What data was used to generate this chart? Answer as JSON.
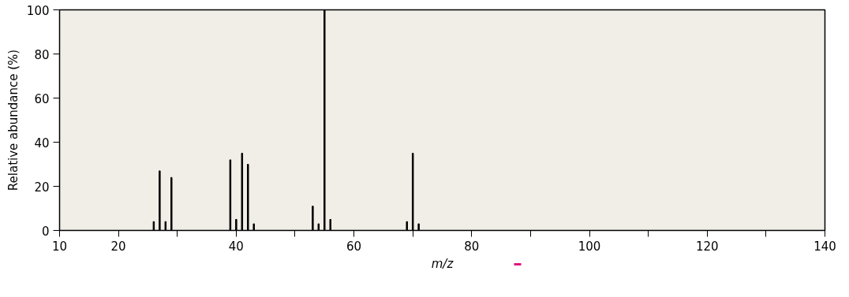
{
  "chart_data": {
    "type": "bar",
    "xlabel": "m/z",
    "ylabel": "Relative abundance (%)",
    "x": [
      26,
      27,
      28,
      29,
      39,
      40,
      41,
      42,
      43,
      53,
      54,
      55,
      56,
      69,
      70,
      71
    ],
    "values": [
      4,
      27,
      4,
      24,
      32,
      5,
      35,
      30,
      3,
      11,
      3,
      100,
      5,
      4,
      35,
      3
    ],
    "color": "#000000",
    "xlim": [
      10,
      140
    ],
    "ylim": [
      0,
      100
    ],
    "xticks": [
      10,
      20,
      {
        "value": 30,
        "label": null
      },
      40,
      {
        "value": 50,
        "label": null
      },
      60,
      {
        "value": 70,
        "label": null
      },
      80,
      {
        "value": 90,
        "label": null
      },
      100,
      {
        "value": 110,
        "label": null
      },
      120,
      {
        "value": 130,
        "label": null
      },
      140
    ],
    "yticks": [
      0,
      20,
      40,
      60,
      80,
      100
    ],
    "grid": false
  }
}
